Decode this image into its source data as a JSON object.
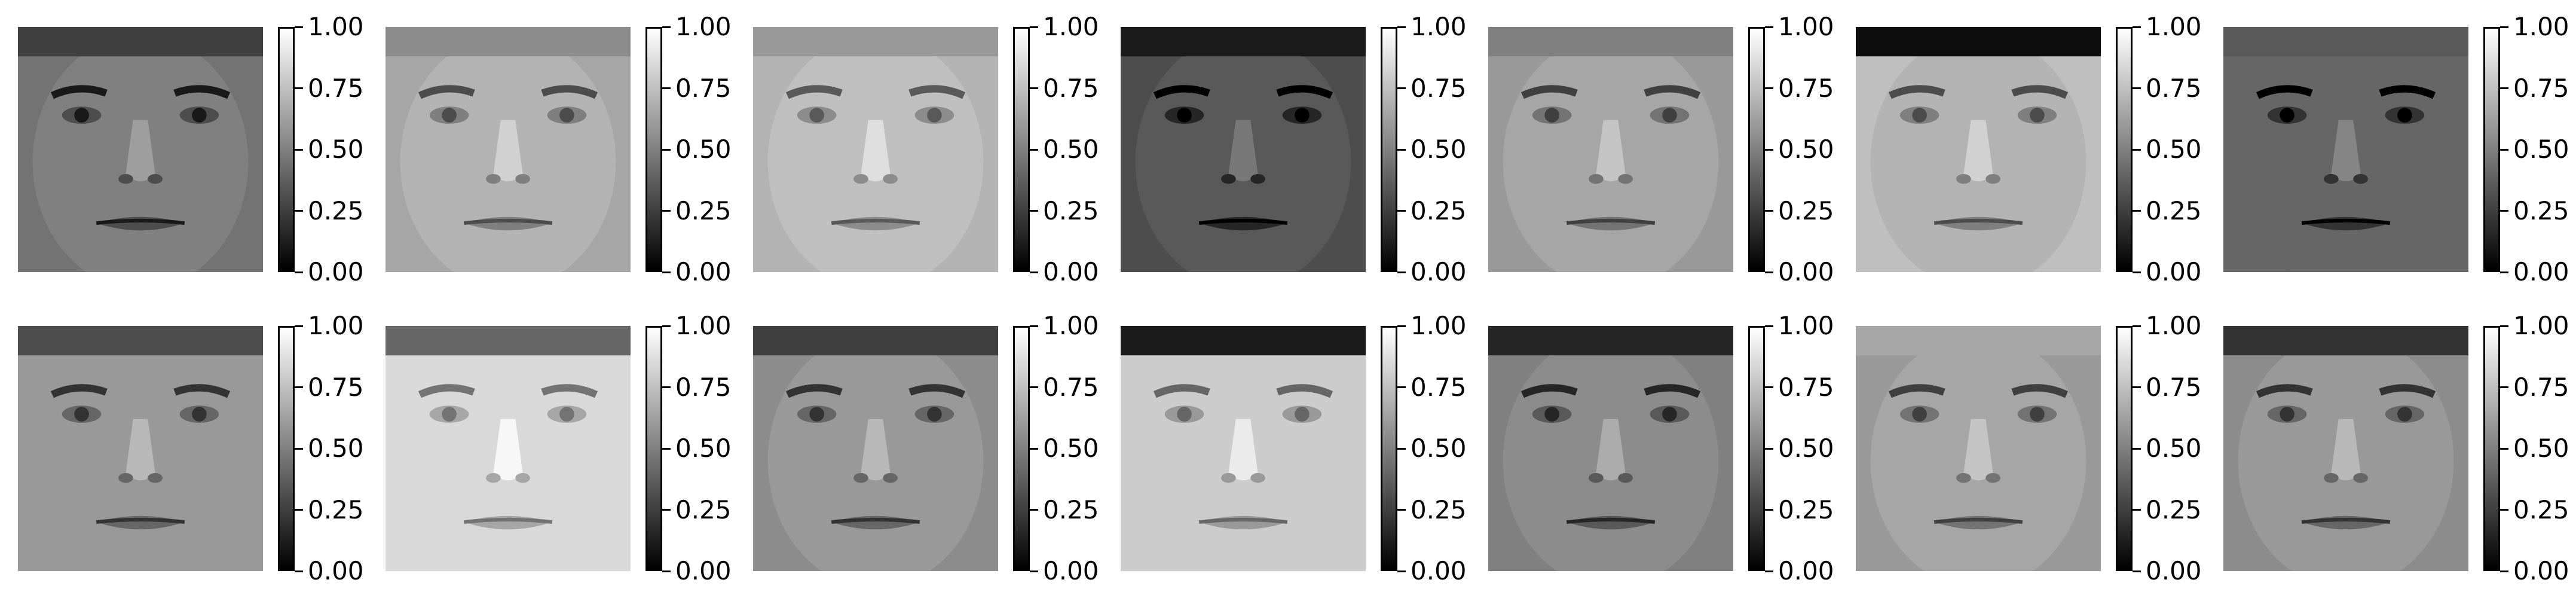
{
  "grid": {
    "rows": 2,
    "cols": 7
  },
  "colorbar": {
    "colormap": "gray",
    "ticks": [
      "0.00",
      "0.25",
      "0.50",
      "0.75",
      "1.00"
    ],
    "tick_values": [
      0.0,
      0.25,
      0.5,
      0.75,
      1.0
    ]
  },
  "panels": [
    {
      "tone": 0.45,
      "hair": 0.25,
      "skin": 0.5
    },
    {
      "tone": 0.65,
      "hair": 0.55,
      "skin": 0.7
    },
    {
      "tone": 0.7,
      "hair": 0.6,
      "skin": 0.75
    },
    {
      "tone": 0.3,
      "hair": 0.1,
      "skin": 0.35
    },
    {
      "tone": 0.6,
      "hair": 0.5,
      "skin": 0.65
    },
    {
      "tone": 0.75,
      "hair": 0.05,
      "skin": 0.7
    },
    {
      "tone": 0.4,
      "hair": 0.35,
      "skin": 0.4
    },
    {
      "tone": 0.6,
      "hair": 0.3,
      "skin": 0.6
    },
    {
      "tone": 0.85,
      "hair": 0.4,
      "skin": 0.85
    },
    {
      "tone": 0.55,
      "hair": 0.25,
      "skin": 0.6
    },
    {
      "tone": 0.8,
      "hair": 0.1,
      "skin": 0.8
    },
    {
      "tone": 0.5,
      "hair": 0.15,
      "skin": 0.55
    },
    {
      "tone": 0.6,
      "hair": 0.65,
      "skin": 0.65
    },
    {
      "tone": 0.55,
      "hair": 0.2,
      "skin": 0.6
    }
  ]
}
